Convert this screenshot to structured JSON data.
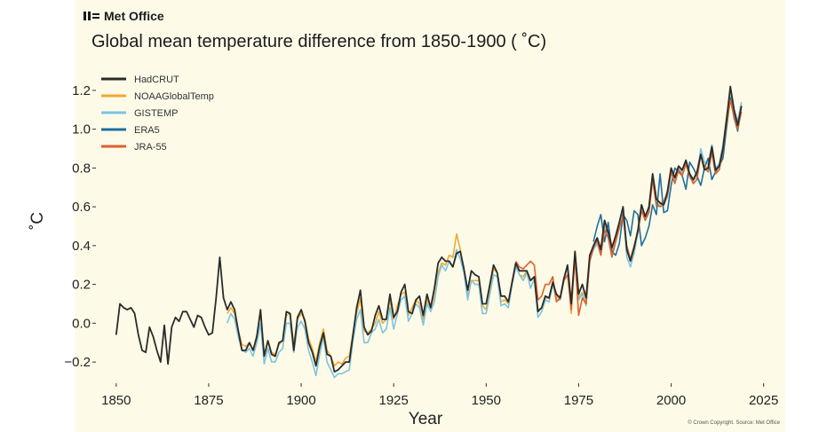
{
  "header": {
    "logo_text": "Met Office",
    "logo_icon": "met-office-logo-icon"
  },
  "credit": "© Crown Copyright. Source: Met Office",
  "colors": {
    "background": "#fdfbe8",
    "HadCRUT": "#2b2b2b",
    "NOAAGlobalTemp": "#f0a830",
    "GISTEMP": "#7cc4e0",
    "ERA5": "#1f6fa0",
    "JRA-55": "#e0602a"
  },
  "chart_data": {
    "type": "line",
    "title": "Global mean temperature difference from 1850-1900 ( ˚C)",
    "xlabel": "Year",
    "ylabel": "˚C",
    "xlim": [
      1845,
      2027
    ],
    "ylim": [
      -0.3,
      1.3
    ],
    "x_ticks": [
      1850,
      1875,
      1900,
      1925,
      1950,
      1975,
      2000,
      2025
    ],
    "y_ticks": [
      -0.2,
      0.0,
      0.2,
      0.4,
      0.6,
      0.8,
      1.0,
      1.2
    ],
    "y_tick_labels": [
      "−0.2",
      "0.0",
      "0.2",
      "0.4",
      "0.6",
      "0.8",
      "1.0",
      "1.2"
    ],
    "grid": false,
    "legend_position": "top-left",
    "series": [
      {
        "name": "HadCRUT",
        "color": "#2b2b2b",
        "start_year": 1850,
        "values": [
          -0.06,
          0.1,
          0.08,
          0.07,
          0.08,
          0.05,
          -0.06,
          -0.14,
          -0.15,
          -0.02,
          -0.07,
          -0.14,
          -0.2,
          -0.01,
          -0.21,
          -0.02,
          0.03,
          0.01,
          0.06,
          0.06,
          0.02,
          -0.02,
          0.04,
          0.03,
          -0.02,
          -0.06,
          -0.05,
          0.13,
          0.34,
          0.13,
          0.07,
          0.11,
          0.07,
          -0.04,
          -0.14,
          -0.14,
          -0.1,
          -0.14,
          -0.07,
          0.07,
          -0.17,
          -0.09,
          -0.16,
          -0.17,
          -0.1,
          -0.09,
          0.06,
          0.05,
          -0.14,
          0.03,
          0.07,
          0.01,
          -0.1,
          -0.15,
          -0.22,
          -0.12,
          -0.05,
          -0.16,
          -0.17,
          -0.25,
          -0.24,
          -0.22,
          -0.2,
          -0.2,
          -0.06,
          0.08,
          0.17,
          -0.02,
          -0.06,
          -0.04,
          0.04,
          0.09,
          0.02,
          0.02,
          0.15,
          0.03,
          0.06,
          0.16,
          0.2,
          0.06,
          0.05,
          0.12,
          0.14,
          0.04,
          0.15,
          0.08,
          0.18,
          0.31,
          0.34,
          0.32,
          0.32,
          0.29,
          0.36,
          0.37,
          0.28,
          0.17,
          0.27,
          0.25,
          0.24,
          0.1,
          0.1,
          0.2,
          0.3,
          0.26,
          0.14,
          0.14,
          0.11,
          0.21,
          0.31,
          0.27,
          0.27,
          0.27,
          0.22,
          0.24,
          0.06,
          0.08,
          0.14,
          0.13,
          0.21,
          0.15,
          0.13,
          0.23,
          0.3,
          0.1,
          0.37,
          0.15,
          0.2,
          0.13,
          0.35,
          0.4,
          0.44,
          0.38,
          0.53,
          0.47,
          0.39,
          0.45,
          0.52,
          0.6,
          0.38,
          0.32,
          0.39,
          0.48,
          0.61,
          0.55,
          0.6,
          0.77,
          0.64,
          0.62,
          0.61,
          0.68,
          0.8,
          0.75,
          0.81,
          0.79,
          0.84,
          0.77,
          0.74,
          0.78,
          0.87,
          0.79,
          0.8,
          0.91,
          0.79,
          0.81,
          0.9,
          1.05,
          1.22,
          1.1,
          1.02,
          1.12
        ]
      },
      {
        "name": "NOAAGlobalTemp",
        "color": "#f0a830",
        "start_year": 1880,
        "values": [
          0.05,
          0.08,
          0.05,
          -0.04,
          -0.11,
          -0.12,
          -0.1,
          -0.14,
          -0.06,
          0.05,
          -0.17,
          -0.09,
          -0.15,
          -0.16,
          -0.11,
          -0.09,
          0.04,
          0.05,
          -0.11,
          0.02,
          0.05,
          0.02,
          -0.08,
          -0.13,
          -0.2,
          -0.1,
          -0.03,
          -0.14,
          -0.17,
          -0.22,
          -0.2,
          -0.21,
          -0.18,
          -0.17,
          -0.05,
          0.05,
          0.13,
          -0.04,
          -0.05,
          -0.03,
          0.0,
          0.06,
          0.0,
          0.02,
          0.12,
          0.02,
          0.09,
          0.15,
          0.16,
          0.04,
          0.08,
          0.12,
          0.1,
          0.02,
          0.12,
          0.08,
          0.14,
          0.26,
          0.31,
          0.3,
          0.35,
          0.34,
          0.46,
          0.38,
          0.27,
          0.14,
          0.22,
          0.22,
          0.22,
          0.09,
          0.07,
          0.17,
          0.28,
          0.26,
          0.11,
          0.12,
          0.1,
          0.22,
          0.3,
          0.25,
          0.24,
          0.27,
          0.22,
          0.24,
          0.07,
          0.08,
          0.13,
          0.13,
          0.22,
          0.14,
          0.12,
          0.22,
          0.29,
          0.05,
          0.37,
          0.13,
          0.16,
          0.1,
          0.33,
          0.38,
          0.42,
          0.37,
          0.5,
          0.47,
          0.36,
          0.44,
          0.52,
          0.57,
          0.38,
          0.33,
          0.39,
          0.46,
          0.61,
          0.55,
          0.58,
          0.76,
          0.6,
          0.62,
          0.63,
          0.67,
          0.79,
          0.75,
          0.81,
          0.78,
          0.83,
          0.76,
          0.74,
          0.75,
          0.89,
          0.81,
          0.8,
          0.9,
          0.79,
          0.81,
          0.92,
          1.07,
          1.18,
          1.08,
          1.03,
          1.12
        ]
      },
      {
        "name": "GISTEMP",
        "color": "#7cc4e0",
        "start_year": 1880,
        "values": [
          0.0,
          0.05,
          0.02,
          -0.07,
          -0.14,
          -0.15,
          -0.13,
          -0.17,
          -0.1,
          0.0,
          -0.21,
          -0.13,
          -0.2,
          -0.2,
          -0.15,
          -0.13,
          0.0,
          0.0,
          -0.15,
          -0.02,
          0.01,
          -0.03,
          -0.14,
          -0.2,
          -0.27,
          -0.16,
          -0.07,
          -0.2,
          -0.24,
          -0.28,
          -0.26,
          -0.26,
          -0.25,
          -0.24,
          -0.09,
          0.02,
          0.07,
          -0.1,
          -0.1,
          -0.05,
          -0.03,
          0.02,
          -0.05,
          -0.03,
          0.08,
          -0.03,
          0.05,
          0.12,
          0.14,
          0.01,
          0.05,
          0.1,
          0.08,
          -0.01,
          0.1,
          0.06,
          0.11,
          0.24,
          0.3,
          0.27,
          0.32,
          0.29,
          0.38,
          0.33,
          0.26,
          0.12,
          0.22,
          0.2,
          0.2,
          0.05,
          0.05,
          0.15,
          0.25,
          0.24,
          0.09,
          0.1,
          0.08,
          0.2,
          0.29,
          0.25,
          0.22,
          0.26,
          0.18,
          0.23,
          0.03,
          0.06,
          0.12,
          0.11,
          0.2,
          0.12,
          0.12,
          0.22,
          0.29,
          0.08,
          0.36,
          0.12,
          0.15,
          0.09,
          0.32,
          0.38,
          0.41,
          0.35,
          0.49,
          0.45,
          0.35,
          0.42,
          0.51,
          0.58,
          0.34,
          0.29,
          0.36,
          0.47,
          0.6,
          0.53,
          0.58,
          0.75,
          0.6,
          0.61,
          0.61,
          0.65,
          0.78,
          0.73,
          0.8,
          0.77,
          0.83,
          0.75,
          0.73,
          0.77,
          0.9,
          0.83,
          0.82,
          0.92,
          0.8,
          0.82,
          0.92,
          1.06,
          1.2,
          1.1,
          1.04,
          1.14
        ]
      },
      {
        "name": "ERA5",
        "color": "#1f6fa0",
        "start_year": 1979,
        "values": [
          0.42,
          0.5,
          0.56,
          0.42,
          0.52,
          0.37,
          0.35,
          0.41,
          0.56,
          0.53,
          0.45,
          0.58,
          0.56,
          0.4,
          0.44,
          0.5,
          0.61,
          0.56,
          0.77,
          0.57,
          0.58,
          0.71,
          0.8,
          0.78,
          0.76,
          0.69,
          0.83,
          0.8,
          0.76,
          0.71,
          0.8,
          0.85,
          0.74,
          0.78,
          0.81,
          0.85,
          1.01,
          1.16,
          1.06,
          0.99,
          1.12
        ]
      },
      {
        "name": "JRA-55",
        "color": "#e0602a",
        "start_year": 1958,
        "values": [
          0.32,
          0.29,
          0.28,
          0.3,
          0.32,
          0.3,
          0.12,
          0.14,
          0.2,
          0.2,
          0.24,
          0.11,
          0.13,
          0.22,
          0.25,
          0.07,
          0.34,
          0.04,
          0.13,
          0.1,
          0.32,
          0.39,
          0.43,
          0.35,
          0.48,
          0.44,
          0.34,
          0.42,
          0.49,
          0.55,
          0.4,
          0.33,
          0.4,
          0.47,
          0.58,
          0.53,
          0.57,
          0.74,
          0.61,
          0.6,
          0.61,
          0.66,
          0.78,
          0.72,
          0.79,
          0.76,
          0.82,
          0.76,
          0.72,
          0.74,
          0.87,
          0.8,
          0.78,
          0.88,
          0.77,
          0.79,
          0.89,
          1.03,
          1.15,
          1.07,
          1.0,
          1.09
        ]
      }
    ]
  }
}
